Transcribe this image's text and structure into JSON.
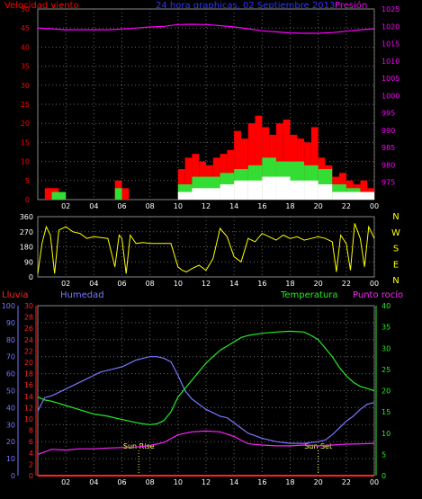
{
  "colors": {
    "wind": "#ff0000",
    "pressure": "#ff00ff",
    "title": "#3333ff",
    "direction": "#ffff00",
    "rain": "#ff2222",
    "humidity": "#7777ff",
    "temperature": "#22ee22",
    "dewpoint": "#ff22ff",
    "axis": "#ffffff",
    "gust": "#33dd33",
    "wind_min": "#ffffff",
    "dir_text": "#ffff00",
    "sun_text": "#ffff55"
  },
  "chart_data": [
    {
      "type": "area",
      "title": "24 hora graphicas, 02 Septiembre 2013",
      "ylabel": "Velocidad viento",
      "y2label": "Presión",
      "x_ticks": [
        "02",
        "04",
        "06",
        "08",
        "10",
        "12",
        "14",
        "16",
        "18",
        "20",
        "22",
        "00"
      ],
      "ylim": [
        0,
        50
      ],
      "y_ticks": [
        "0",
        "5",
        "10",
        "15",
        "20",
        "25",
        "30",
        "35",
        "40",
        "45",
        "50"
      ],
      "y2lim": [
        970,
        1025
      ],
      "y2_ticks": [
        "975",
        "980",
        "985",
        "990",
        "995",
        "1000",
        "1005",
        "1010",
        "1015",
        "1020",
        "1025"
      ],
      "series": [
        {
          "name": "Velocidad viento",
          "x": [
            0.0,
            0.5,
            1.0,
            1.5,
            2.0,
            2.5,
            3.0,
            3.5,
            4.0,
            4.5,
            5.0,
            5.5,
            6.0,
            6.5,
            7.0,
            7.5,
            8.0,
            8.5,
            9.0,
            9.5,
            10.0,
            10.5,
            11.0,
            11.5,
            12.0,
            12.5,
            13.0,
            13.5,
            14.0,
            14.5,
            15.0,
            15.5,
            16.0,
            16.5,
            17.0,
            17.5,
            18.0,
            18.5,
            19.0,
            19.5,
            20.0,
            20.5,
            21.0,
            21.5,
            22.0,
            22.5,
            23.0,
            23.5,
            24.0
          ],
          "values": [
            0,
            3,
            3,
            0,
            0,
            0,
            0,
            0,
            0,
            0,
            0,
            5,
            3,
            0,
            0,
            0,
            0,
            0,
            0,
            0,
            8,
            11,
            12,
            10,
            9,
            11,
            12,
            13,
            18,
            16,
            20,
            22,
            19,
            17,
            20,
            21,
            17,
            16,
            15,
            19,
            11,
            9,
            6,
            7,
            5,
            4,
            5,
            3,
            0
          ]
        },
        {
          "name": "Racha",
          "x": [
            0.0,
            1.0,
            2.0,
            5.5,
            6.0,
            10.0,
            11.0,
            12.0,
            13.0,
            14.0,
            15.0,
            16.0,
            17.0,
            18.0,
            19.0,
            20.0,
            21.0,
            22.0,
            23.0,
            24.0
          ],
          "values": [
            0,
            2,
            0,
            3,
            0,
            4,
            6,
            6,
            7,
            8,
            9,
            11,
            10,
            10,
            9,
            8,
            4,
            3,
            2,
            0
          ]
        },
        {
          "name": "Mínimo",
          "x": [
            0.0,
            10.0,
            11.0,
            12.0,
            13.0,
            14.0,
            15.0,
            16.0,
            17.0,
            18.0,
            19.0,
            20.0,
            21.0,
            24.0
          ],
          "values": [
            0,
            2,
            3,
            3,
            4,
            5,
            5,
            6,
            6,
            5,
            5,
            4,
            2,
            0
          ]
        },
        {
          "name": "Presión",
          "axis": "right",
          "x": [
            0.0,
            1.0,
            2.0,
            3.0,
            4.0,
            5.0,
            6.0,
            7.0,
            8.0,
            9.0,
            10.0,
            11.0,
            12.0,
            13.0,
            14.0,
            15.0,
            16.0,
            17.0,
            18.0,
            19.0,
            20.0,
            21.0,
            22.0,
            23.0,
            24.0
          ],
          "values": [
            1019.5,
            1019.3,
            1019.0,
            1019.0,
            1019.0,
            1019.0,
            1019.2,
            1019.5,
            1019.8,
            1020.0,
            1020.5,
            1020.6,
            1020.5,
            1020.2,
            1019.8,
            1019.3,
            1018.7,
            1018.4,
            1018.1,
            1018.0,
            1018.0,
            1018.2,
            1018.6,
            1019.0,
            1019.3
          ]
        }
      ]
    },
    {
      "type": "line",
      "x_ticks": [
        "02",
        "04",
        "06",
        "08",
        "10",
        "12",
        "14",
        "16",
        "18",
        "20",
        "22",
        "00"
      ],
      "ylim": [
        0,
        360
      ],
      "y_ticks": [
        "0",
        "90",
        "180",
        "270",
        "360"
      ],
      "right_labels": [
        "N",
        "W",
        "S",
        "E",
        "N"
      ],
      "series": [
        {
          "name": "Dirección viento",
          "x": [
            0.0,
            0.3,
            0.6,
            0.9,
            1.2,
            1.5,
            2.0,
            2.5,
            3.0,
            3.5,
            4.0,
            4.5,
            5.0,
            5.5,
            5.8,
            6.0,
            6.3,
            6.6,
            7.0,
            7.5,
            8.0,
            8.5,
            9.0,
            9.5,
            10.0,
            10.3,
            10.6,
            11.0,
            11.5,
            12.0,
            12.5,
            13.0,
            13.5,
            14.0,
            14.5,
            15.0,
            15.5,
            16.0,
            16.5,
            17.0,
            17.5,
            18.0,
            18.5,
            19.0,
            19.5,
            20.0,
            20.5,
            21.0,
            21.3,
            21.6,
            22.0,
            22.3,
            22.6,
            23.0,
            23.3,
            23.6,
            24.0
          ],
          "values": [
            20,
            200,
            300,
            250,
            20,
            280,
            300,
            270,
            260,
            230,
            240,
            235,
            230,
            60,
            250,
            230,
            20,
            250,
            200,
            205,
            200,
            200,
            200,
            200,
            60,
            40,
            30,
            50,
            70,
            40,
            110,
            290,
            240,
            120,
            90,
            230,
            210,
            260,
            240,
            220,
            250,
            230,
            240,
            220,
            230,
            240,
            230,
            210,
            30,
            250,
            200,
            40,
            320,
            230,
            60,
            300,
            230
          ]
        }
      ]
    },
    {
      "type": "line",
      "labels": {
        "rain": "Lluvia",
        "humidity": "Humedad",
        "temperature": "Temperatura",
        "dewpoint": "Punto rocío"
      },
      "x_ticks": [
        "02",
        "04",
        "06",
        "08",
        "10",
        "12",
        "14",
        "16",
        "18",
        "20",
        "22",
        "00"
      ],
      "hum_ylim": [
        0,
        100
      ],
      "hum_ticks": [
        "0",
        "10",
        "20",
        "30",
        "40",
        "50",
        "60",
        "70",
        "80",
        "90",
        "100"
      ],
      "rain_ylim": [
        0,
        30
      ],
      "rain_ticks": [
        "0",
        "2",
        "4",
        "6",
        "8",
        "10",
        "12",
        "14",
        "16",
        "18",
        "20",
        "22",
        "24",
        "26",
        "28",
        "30"
      ],
      "temp_ylim": [
        0,
        40
      ],
      "temp_ticks": [
        "0",
        "5",
        "10",
        "15",
        "20",
        "25",
        "30",
        "35",
        "40"
      ],
      "annotations": [
        {
          "text": "Sun Rise",
          "x": 7.2
        },
        {
          "text": "Sun Set",
          "x": 20.0
        }
      ],
      "series": [
        {
          "name": "Humedad",
          "axis": "hum",
          "x": [
            0.0,
            0.5,
            1.0,
            1.5,
            2.0,
            2.5,
            3.0,
            3.5,
            4.0,
            4.5,
            5.0,
            5.5,
            6.0,
            6.5,
            7.0,
            7.5,
            8.0,
            8.5,
            9.0,
            9.5,
            10.0,
            10.5,
            11.0,
            11.5,
            12.0,
            12.5,
            13.0,
            13.5,
            14.0,
            14.5,
            15.0,
            16.0,
            17.0,
            18.0,
            19.0,
            20.0,
            20.5,
            21.0,
            21.5,
            22.0,
            22.5,
            23.0,
            23.5,
            24.0
          ],
          "values": [
            38,
            46,
            47,
            49,
            51,
            53,
            55,
            57,
            59,
            61,
            62,
            63,
            64,
            66,
            68,
            69,
            70,
            70,
            69,
            67,
            59,
            50,
            45,
            42,
            39,
            37,
            35,
            34,
            31,
            28,
            25,
            22,
            20,
            19,
            19,
            20,
            21,
            24,
            28,
            32,
            35,
            39,
            42,
            43
          ]
        },
        {
          "name": "Temperatura",
          "axis": "temp",
          "x": [
            0.0,
            0.5,
            1.0,
            2.0,
            3.0,
            4.0,
            5.0,
            6.0,
            7.0,
            7.5,
            8.0,
            8.5,
            9.0,
            9.5,
            10.0,
            10.5,
            11.0,
            11.5,
            12.0,
            12.5,
            13.0,
            13.5,
            14.0,
            14.5,
            15.0,
            16.0,
            17.0,
            18.0,
            19.0,
            19.5,
            20.0,
            20.5,
            21.0,
            21.5,
            22.0,
            22.5,
            23.0,
            23.5,
            24.0
          ],
          "values": [
            18.5,
            17.8,
            17.5,
            16.5,
            15.5,
            14.5,
            14.0,
            13.2,
            12.5,
            12.2,
            12.0,
            12.2,
            13.0,
            15.0,
            18.5,
            20.5,
            22.5,
            24.5,
            26.5,
            28.0,
            29.5,
            30.5,
            31.5,
            32.5,
            33.0,
            33.5,
            33.8,
            34.0,
            33.8,
            33.0,
            32.0,
            30.0,
            28.0,
            25.5,
            23.5,
            22.0,
            21.0,
            20.5,
            20.0
          ]
        },
        {
          "name": "Punto rocío",
          "axis": "temp",
          "x": [
            0.0,
            1.0,
            2.0,
            3.0,
            4.0,
            5.0,
            6.0,
            7.0,
            8.0,
            9.0,
            10.0,
            11.0,
            12.0,
            13.0,
            14.0,
            15.0,
            16.0,
            17.0,
            18.0,
            19.0,
            20.0,
            21.0,
            22.0,
            23.0,
            24.0
          ],
          "values": [
            5.0,
            6.2,
            6.0,
            6.3,
            6.3,
            6.5,
            6.6,
            6.7,
            7.1,
            7.8,
            9.6,
            10.3,
            10.5,
            10.3,
            9.2,
            7.5,
            7.2,
            7.0,
            7.0,
            7.2,
            7.0,
            7.2,
            7.4,
            7.5,
            7.6
          ]
        },
        {
          "name": "Lluvia",
          "axis": "rain",
          "x": [
            0,
            24
          ],
          "values": [
            0,
            0
          ]
        }
      ]
    }
  ]
}
